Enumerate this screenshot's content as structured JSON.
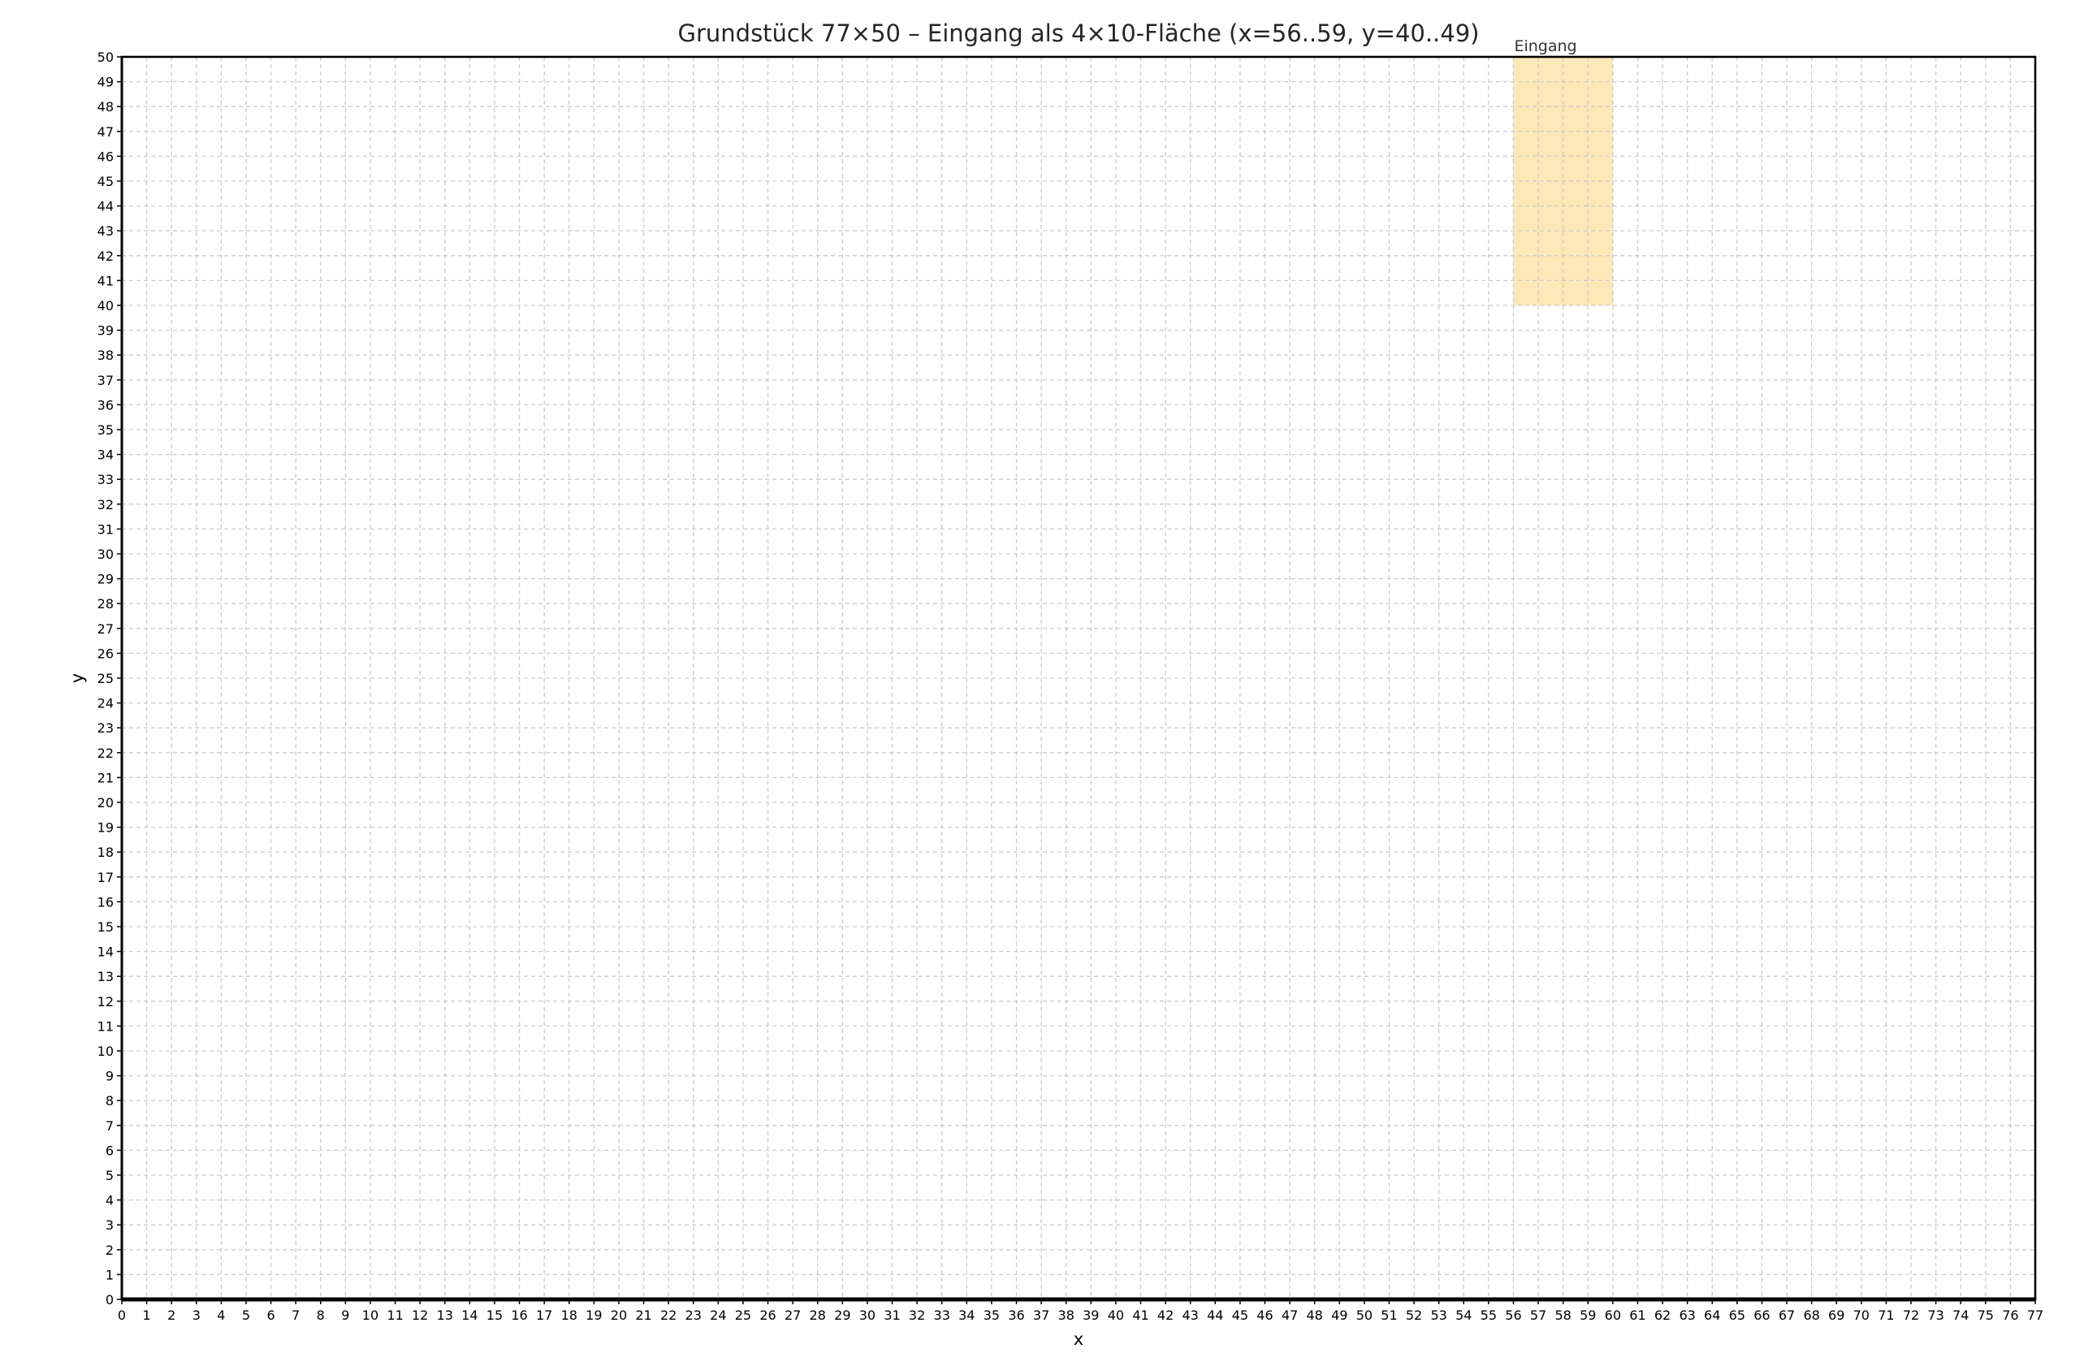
{
  "chart_data": {
    "type": "heatmap",
    "title": "Grundstück 77×50 – Eingang als 4×10-Fläche (x=56..59, y=40..49)",
    "xlabel": "x",
    "ylabel": "y",
    "xlim": [
      0,
      77
    ],
    "ylim": [
      0,
      50
    ],
    "x_ticks": [
      0,
      1,
      2,
      3,
      4,
      5,
      6,
      7,
      8,
      9,
      10,
      11,
      12,
      13,
      14,
      15,
      16,
      17,
      18,
      19,
      20,
      21,
      22,
      23,
      24,
      25,
      26,
      27,
      28,
      29,
      30,
      31,
      32,
      33,
      34,
      35,
      36,
      37,
      38,
      39,
      40,
      41,
      42,
      43,
      44,
      45,
      46,
      47,
      48,
      49,
      50,
      51,
      52,
      53,
      54,
      55,
      56,
      57,
      58,
      59,
      60,
      61,
      62,
      63,
      64,
      65,
      66,
      67,
      68,
      69,
      70,
      71,
      72,
      73,
      74,
      75,
      76,
      77
    ],
    "y_ticks": [
      0,
      1,
      2,
      3,
      4,
      5,
      6,
      7,
      8,
      9,
      10,
      11,
      12,
      13,
      14,
      15,
      16,
      17,
      18,
      19,
      20,
      21,
      22,
      23,
      24,
      25,
      26,
      27,
      28,
      29,
      30,
      31,
      32,
      33,
      34,
      35,
      36,
      37,
      38,
      39,
      40,
      41,
      42,
      43,
      44,
      45,
      46,
      47,
      48,
      49,
      50
    ],
    "grid": true,
    "grid_style": "dashed",
    "regions": [
      {
        "label": "Eingang",
        "x0": 56,
        "x1": 60,
        "y0": 40,
        "y1": 50,
        "color": "#fde8b8"
      }
    ],
    "colors": {
      "background": "#ffffff",
      "grid": "#cccccc",
      "axis": "#000000",
      "title": "#262626",
      "annotation": "#333333"
    }
  }
}
